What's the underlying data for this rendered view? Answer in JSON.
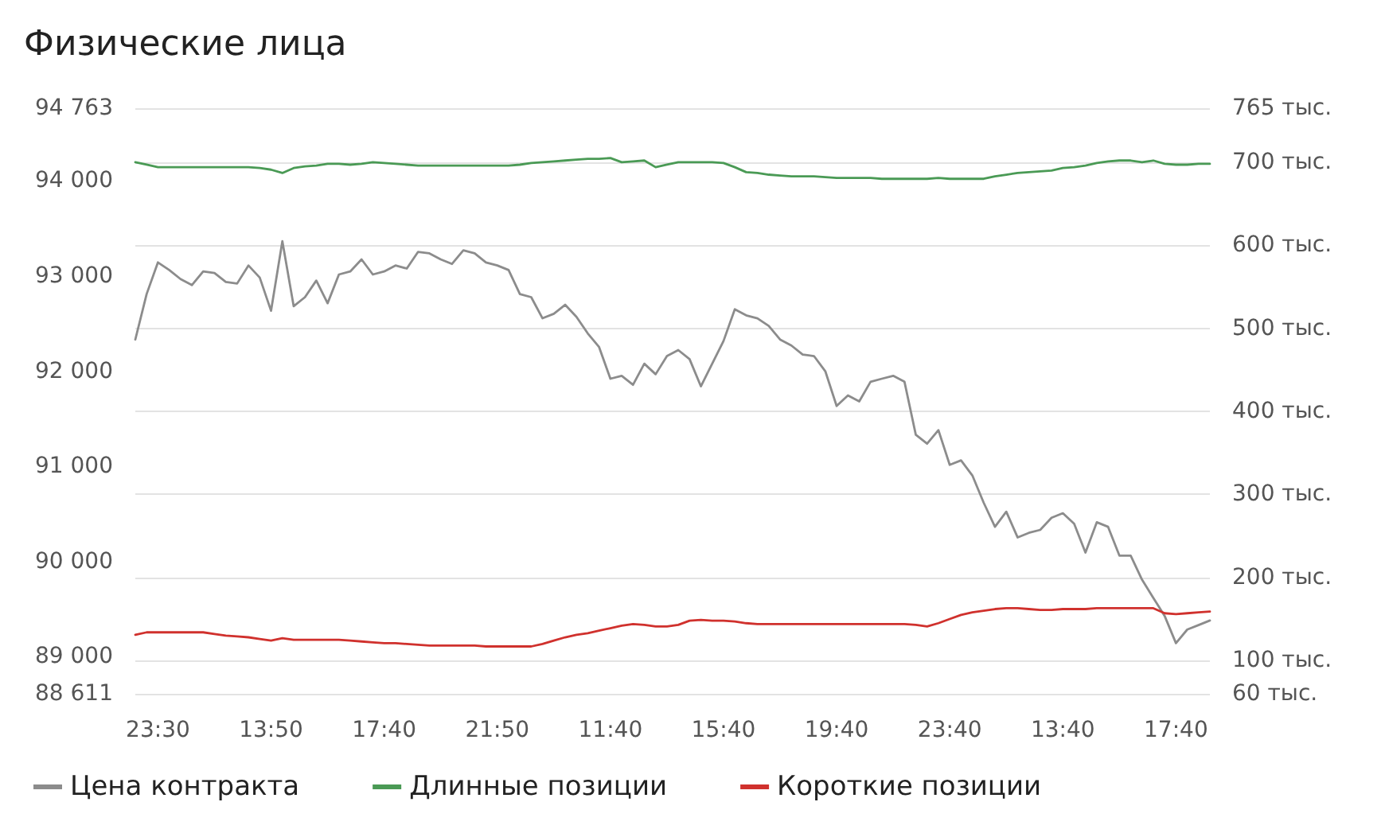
{
  "chart_data": {
    "type": "line",
    "title": "Физические лица",
    "categories": [
      null,
      null,
      "23:30",
      null,
      null,
      null,
      null,
      null,
      null,
      null,
      null,
      null,
      "13:50",
      null,
      null,
      null,
      null,
      null,
      null,
      null,
      null,
      null,
      "17:40",
      null,
      null,
      null,
      null,
      null,
      null,
      null,
      null,
      null,
      "21:50",
      null,
      null,
      null,
      null,
      null,
      null,
      null,
      null,
      null,
      "11:40",
      null,
      null,
      null,
      null,
      null,
      null,
      null,
      null,
      null,
      "15:40",
      null,
      null,
      null,
      null,
      null,
      null,
      null,
      null,
      null,
      "19:40",
      null,
      null,
      null,
      null,
      null,
      null,
      null,
      null,
      null,
      "23:40",
      null,
      null,
      null,
      null,
      null,
      null,
      null,
      null,
      null,
      "13:40",
      null,
      null,
      null,
      null,
      null,
      null,
      null,
      null,
      null,
      "17:40",
      null,
      null,
      null
    ],
    "series": [
      {
        "name": "Цена контракта",
        "color": "#8c8c8c",
        "values": [
          92333,
          92810,
          93143,
          93063,
          92968,
          92905,
          93048,
          93032,
          92937,
          92921,
          93111,
          92984,
          92635,
          93365,
          92683,
          92778,
          92952,
          92714,
          93016,
          93048,
          93175,
          93016,
          93048,
          93111,
          93079,
          93254,
          93238,
          93175,
          93127,
          93270,
          93238,
          93143,
          93111,
          93063,
          92810,
          92778,
          92556,
          92603,
          92698,
          92571,
          92397,
          92254,
          91921,
          91952,
          91857,
          92079,
          91968,
          92159,
          92222,
          92127,
          91841,
          92079,
          92317,
          92651,
          92587,
          92556,
          92476,
          92333,
          92270,
          92175,
          92159,
          92000,
          91635,
          91746,
          91683,
          91889,
          91921,
          91952,
          91889,
          91333,
          91238,
          91381,
          91016,
          91063,
          90905,
          90619,
          90365,
          90524,
          90254,
          90302,
          90333,
          90460,
          90508,
          90397,
          90095,
          90413,
          90365,
          90063,
          90063,
          89810,
          89619,
          89429,
          89143,
          89286,
          89333,
          89381
        ]
      },
      {
        "name": "Длинные позиции",
        "color": "#4a9a55",
        "axis": "y2",
        "values": [
          700,
          697,
          694,
          694,
          694,
          694,
          694,
          694,
          694,
          694,
          694,
          693,
          691,
          687,
          693,
          695,
          696,
          698,
          698,
          697,
          698,
          700,
          699,
          698,
          697,
          696,
          696,
          696,
          696,
          696,
          696,
          696,
          696,
          696,
          697,
          699,
          700,
          701,
          702,
          703,
          704,
          704,
          705,
          700,
          701,
          702,
          694,
          697,
          700,
          700,
          700,
          700,
          699,
          694,
          688,
          687,
          685,
          684,
          683,
          683,
          683,
          682,
          681,
          681,
          681,
          681,
          680,
          680,
          680,
          680,
          680,
          681,
          680,
          680,
          680,
          680,
          683,
          685,
          687,
          688,
          689,
          690,
          693,
          694,
          696,
          699,
          701,
          702,
          702,
          700,
          702,
          698,
          697,
          697,
          698,
          698
        ]
      },
      {
        "name": "Короткие позиции",
        "color": "#d0312d",
        "axis": "y2",
        "values": [
          131,
          134,
          134,
          134,
          134,
          134,
          134,
          132,
          130,
          129,
          128,
          126,
          124,
          127,
          125,
          125,
          125,
          125,
          125,
          124,
          123,
          122,
          121,
          121,
          120,
          119,
          118,
          118,
          118,
          118,
          118,
          117,
          117,
          117,
          117,
          117,
          120,
          124,
          128,
          131,
          133,
          136,
          139,
          142,
          144,
          143,
          141,
          141,
          143,
          148,
          149,
          148,
          148,
          147,
          145,
          144,
          144,
          144,
          144,
          144,
          144,
          144,
          144,
          144,
          144,
          144,
          144,
          144,
          144,
          143,
          141,
          145,
          150,
          155,
          158,
          160,
          162,
          163,
          163,
          162,
          161,
          161,
          162,
          162,
          162,
          163,
          163,
          163,
          163,
          163,
          163,
          157,
          156,
          157,
          158,
          159
        ]
      }
    ],
    "ylim": [
      88611,
      94763
    ],
    "yticks": [
      {
        "value": 88611,
        "label": "88 611"
      },
      {
        "value": 89000,
        "label": "89 000"
      },
      {
        "value": 90000,
        "label": "90 000"
      },
      {
        "value": 91000,
        "label": "91 000"
      },
      {
        "value": 92000,
        "label": "92 000"
      },
      {
        "value": 93000,
        "label": "93 000"
      },
      {
        "value": 94000,
        "label": "94 000"
      },
      {
        "value": 94763,
        "label": "94 763"
      }
    ],
    "y2lim": [
      60,
      765
    ],
    "y2ticks": [
      {
        "value": 60,
        "label": "60 тыс."
      },
      {
        "value": 100,
        "label": "100 тыс."
      },
      {
        "value": 200,
        "label": "200 тыс."
      },
      {
        "value": 300,
        "label": "300 тыс."
      },
      {
        "value": 400,
        "label": "400 тыс."
      },
      {
        "value": 500,
        "label": "500 тыс."
      },
      {
        "value": 600,
        "label": "600 тыс."
      },
      {
        "value": 700,
        "label": "700 тыс."
      },
      {
        "value": 765,
        "label": "765 тыс."
      }
    ],
    "grid": "y",
    "legend": "bottom left",
    "marker": "none",
    "line_style": "solid"
  }
}
